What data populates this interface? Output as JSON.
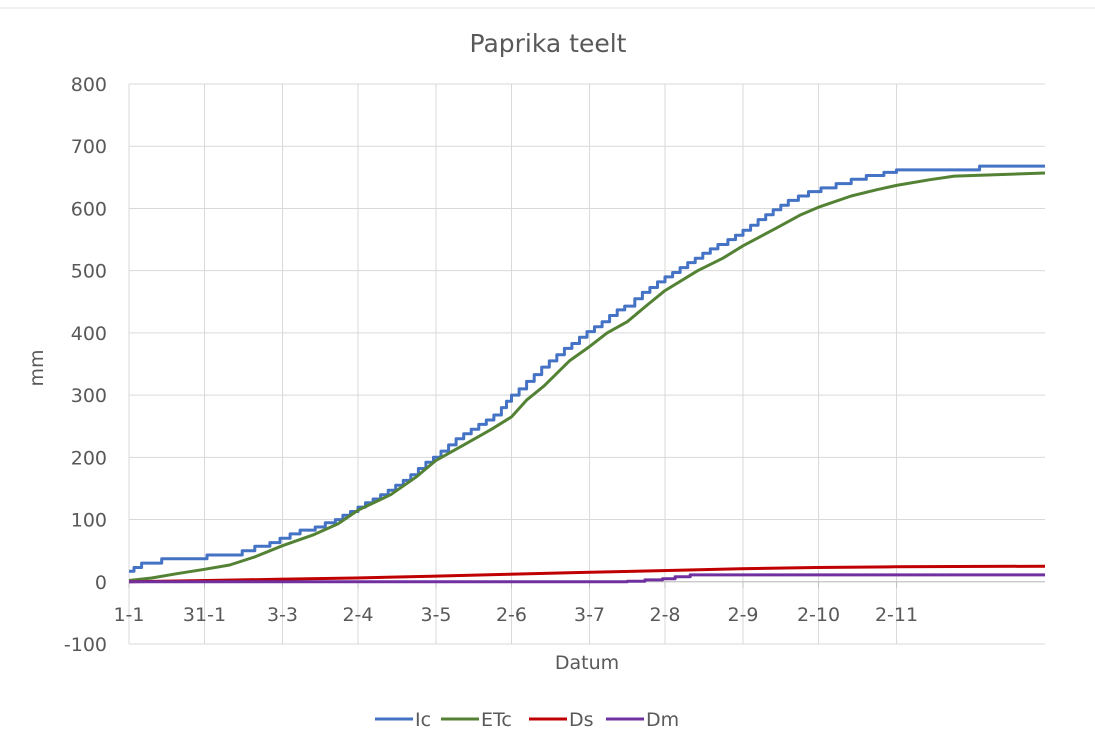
{
  "chart_data": {
    "type": "line",
    "title": "Paprika teelt",
    "xlabel": "Datum",
    "ylabel": "mm",
    "ylim": [
      -100,
      800
    ],
    "yticks": [
      -100,
      0,
      100,
      200,
      300,
      400,
      500,
      600,
      700,
      800
    ],
    "xlim": [
      "2021-01-01",
      "2021-12-31"
    ],
    "xticks": [
      {
        "label": "1-1",
        "date": "2021-01-01"
      },
      {
        "label": "31-1",
        "date": "2021-01-31"
      },
      {
        "label": "3-3",
        "date": "2021-03-03"
      },
      {
        "label": "2-4",
        "date": "2021-04-02"
      },
      {
        "label": "3-5",
        "date": "2021-05-03"
      },
      {
        "label": "2-6",
        "date": "2021-06-02"
      },
      {
        "label": "3-7",
        "date": "2021-07-03"
      },
      {
        "label": "2-8",
        "date": "2021-08-02"
      },
      {
        "label": "2-9",
        "date": "2021-09-02"
      },
      {
        "label": "2-10",
        "date": "2021-10-02"
      },
      {
        "label": "2-11",
        "date": "2021-11-02"
      }
    ],
    "grid": true,
    "legend_position": "bottom",
    "series": [
      {
        "name": "Ic",
        "color": "#4472c4",
        "step": true,
        "points": [
          [
            "2021-01-01",
            17
          ],
          [
            "2021-01-03",
            23
          ],
          [
            "2021-01-06",
            30
          ],
          [
            "2021-01-14",
            37
          ],
          [
            "2021-02-01",
            43
          ],
          [
            "2021-02-15",
            50
          ],
          [
            "2021-02-20",
            57
          ],
          [
            "2021-02-26",
            63
          ],
          [
            "2021-03-02",
            70
          ],
          [
            "2021-03-06",
            77
          ],
          [
            "2021-03-10",
            83
          ],
          [
            "2021-03-16",
            88
          ],
          [
            "2021-03-20",
            95
          ],
          [
            "2021-03-24",
            100
          ],
          [
            "2021-03-27",
            107
          ],
          [
            "2021-03-30",
            113
          ],
          [
            "2021-04-02",
            120
          ],
          [
            "2021-04-05",
            127
          ],
          [
            "2021-04-08",
            133
          ],
          [
            "2021-04-11",
            140
          ],
          [
            "2021-04-14",
            147
          ],
          [
            "2021-04-17",
            155
          ],
          [
            "2021-04-20",
            163
          ],
          [
            "2021-04-23",
            172
          ],
          [
            "2021-04-26",
            182
          ],
          [
            "2021-04-29",
            192
          ],
          [
            "2021-05-02",
            200
          ],
          [
            "2021-05-05",
            210
          ],
          [
            "2021-05-08",
            220
          ],
          [
            "2021-05-11",
            230
          ],
          [
            "2021-05-14",
            238
          ],
          [
            "2021-05-17",
            245
          ],
          [
            "2021-05-20",
            253
          ],
          [
            "2021-05-23",
            260
          ],
          [
            "2021-05-26",
            268
          ],
          [
            "2021-05-29",
            280
          ],
          [
            "2021-05-31",
            290
          ],
          [
            "2021-06-02",
            300
          ],
          [
            "2021-06-05",
            310
          ],
          [
            "2021-06-08",
            322
          ],
          [
            "2021-06-11",
            333
          ],
          [
            "2021-06-14",
            345
          ],
          [
            "2021-06-17",
            355
          ],
          [
            "2021-06-20",
            365
          ],
          [
            "2021-06-23",
            375
          ],
          [
            "2021-06-26",
            383
          ],
          [
            "2021-06-29",
            393
          ],
          [
            "2021-07-02",
            402
          ],
          [
            "2021-07-05",
            410
          ],
          [
            "2021-07-08",
            418
          ],
          [
            "2021-07-11",
            428
          ],
          [
            "2021-07-14",
            437
          ],
          [
            "2021-07-17",
            443
          ],
          [
            "2021-07-21",
            455
          ],
          [
            "2021-07-24",
            465
          ],
          [
            "2021-07-27",
            473
          ],
          [
            "2021-07-30",
            482
          ],
          [
            "2021-08-02",
            490
          ],
          [
            "2021-08-05",
            497
          ],
          [
            "2021-08-08",
            505
          ],
          [
            "2021-08-11",
            513
          ],
          [
            "2021-08-14",
            520
          ],
          [
            "2021-08-17",
            528
          ],
          [
            "2021-08-20",
            535
          ],
          [
            "2021-08-23",
            542
          ],
          [
            "2021-08-27",
            550
          ],
          [
            "2021-08-30",
            557
          ],
          [
            "2021-09-02",
            565
          ],
          [
            "2021-09-05",
            573
          ],
          [
            "2021-09-08",
            582
          ],
          [
            "2021-09-11",
            590
          ],
          [
            "2021-09-14",
            598
          ],
          [
            "2021-09-17",
            605
          ],
          [
            "2021-09-20",
            613
          ],
          [
            "2021-09-24",
            620
          ],
          [
            "2021-09-28",
            627
          ],
          [
            "2021-10-03",
            633
          ],
          [
            "2021-10-09",
            640
          ],
          [
            "2021-10-15",
            647
          ],
          [
            "2021-10-21",
            653
          ],
          [
            "2021-10-28",
            658
          ],
          [
            "2021-11-02",
            662
          ],
          [
            "2021-12-05",
            668
          ],
          [
            "2021-12-31",
            668
          ]
        ]
      },
      {
        "name": "ETc",
        "color": "#548235",
        "step": false,
        "points": [
          [
            "2021-01-01",
            2
          ],
          [
            "2021-01-10",
            6
          ],
          [
            "2021-01-20",
            13
          ],
          [
            "2021-01-31",
            20
          ],
          [
            "2021-02-10",
            27
          ],
          [
            "2021-02-20",
            40
          ],
          [
            "2021-03-03",
            58
          ],
          [
            "2021-03-15",
            75
          ],
          [
            "2021-03-25",
            93
          ],
          [
            "2021-04-02",
            115
          ],
          [
            "2021-04-15",
            140
          ],
          [
            "2021-04-25",
            168
          ],
          [
            "2021-05-03",
            195
          ],
          [
            "2021-05-15",
            222
          ],
          [
            "2021-05-25",
            245
          ],
          [
            "2021-06-02",
            265
          ],
          [
            "2021-06-08",
            292
          ],
          [
            "2021-06-15",
            315
          ],
          [
            "2021-06-25",
            355
          ],
          [
            "2021-07-03",
            378
          ],
          [
            "2021-07-10",
            400
          ],
          [
            "2021-07-18",
            418
          ],
          [
            "2021-07-26",
            445
          ],
          [
            "2021-08-02",
            468
          ],
          [
            "2021-08-15",
            500
          ],
          [
            "2021-08-25",
            520
          ],
          [
            "2021-09-02",
            540
          ],
          [
            "2021-09-15",
            568
          ],
          [
            "2021-09-25",
            590
          ],
          [
            "2021-10-02",
            602
          ],
          [
            "2021-10-15",
            620
          ],
          [
            "2021-10-25",
            630
          ],
          [
            "2021-11-02",
            637
          ],
          [
            "2021-11-15",
            646
          ],
          [
            "2021-11-25",
            652
          ],
          [
            "2021-12-31",
            657
          ]
        ]
      },
      {
        "name": "Ds",
        "color": "#c00000",
        "step": false,
        "points": [
          [
            "2021-01-01",
            0
          ],
          [
            "2021-02-01",
            2
          ],
          [
            "2021-03-01",
            4
          ],
          [
            "2021-04-01",
            6
          ],
          [
            "2021-05-01",
            9
          ],
          [
            "2021-06-01",
            12
          ],
          [
            "2021-07-01",
            15
          ],
          [
            "2021-08-01",
            18
          ],
          [
            "2021-09-01",
            21
          ],
          [
            "2021-10-01",
            23
          ],
          [
            "2021-11-01",
            24
          ],
          [
            "2021-12-31",
            25
          ]
        ]
      },
      {
        "name": "Dm",
        "color": "#7030a0",
        "step": true,
        "points": [
          [
            "2021-01-01",
            0
          ],
          [
            "2021-07-18",
            1
          ],
          [
            "2021-07-25",
            3
          ],
          [
            "2021-08-01",
            5
          ],
          [
            "2021-08-06",
            8
          ],
          [
            "2021-08-12",
            11
          ],
          [
            "2021-12-31",
            11
          ]
        ]
      }
    ]
  }
}
